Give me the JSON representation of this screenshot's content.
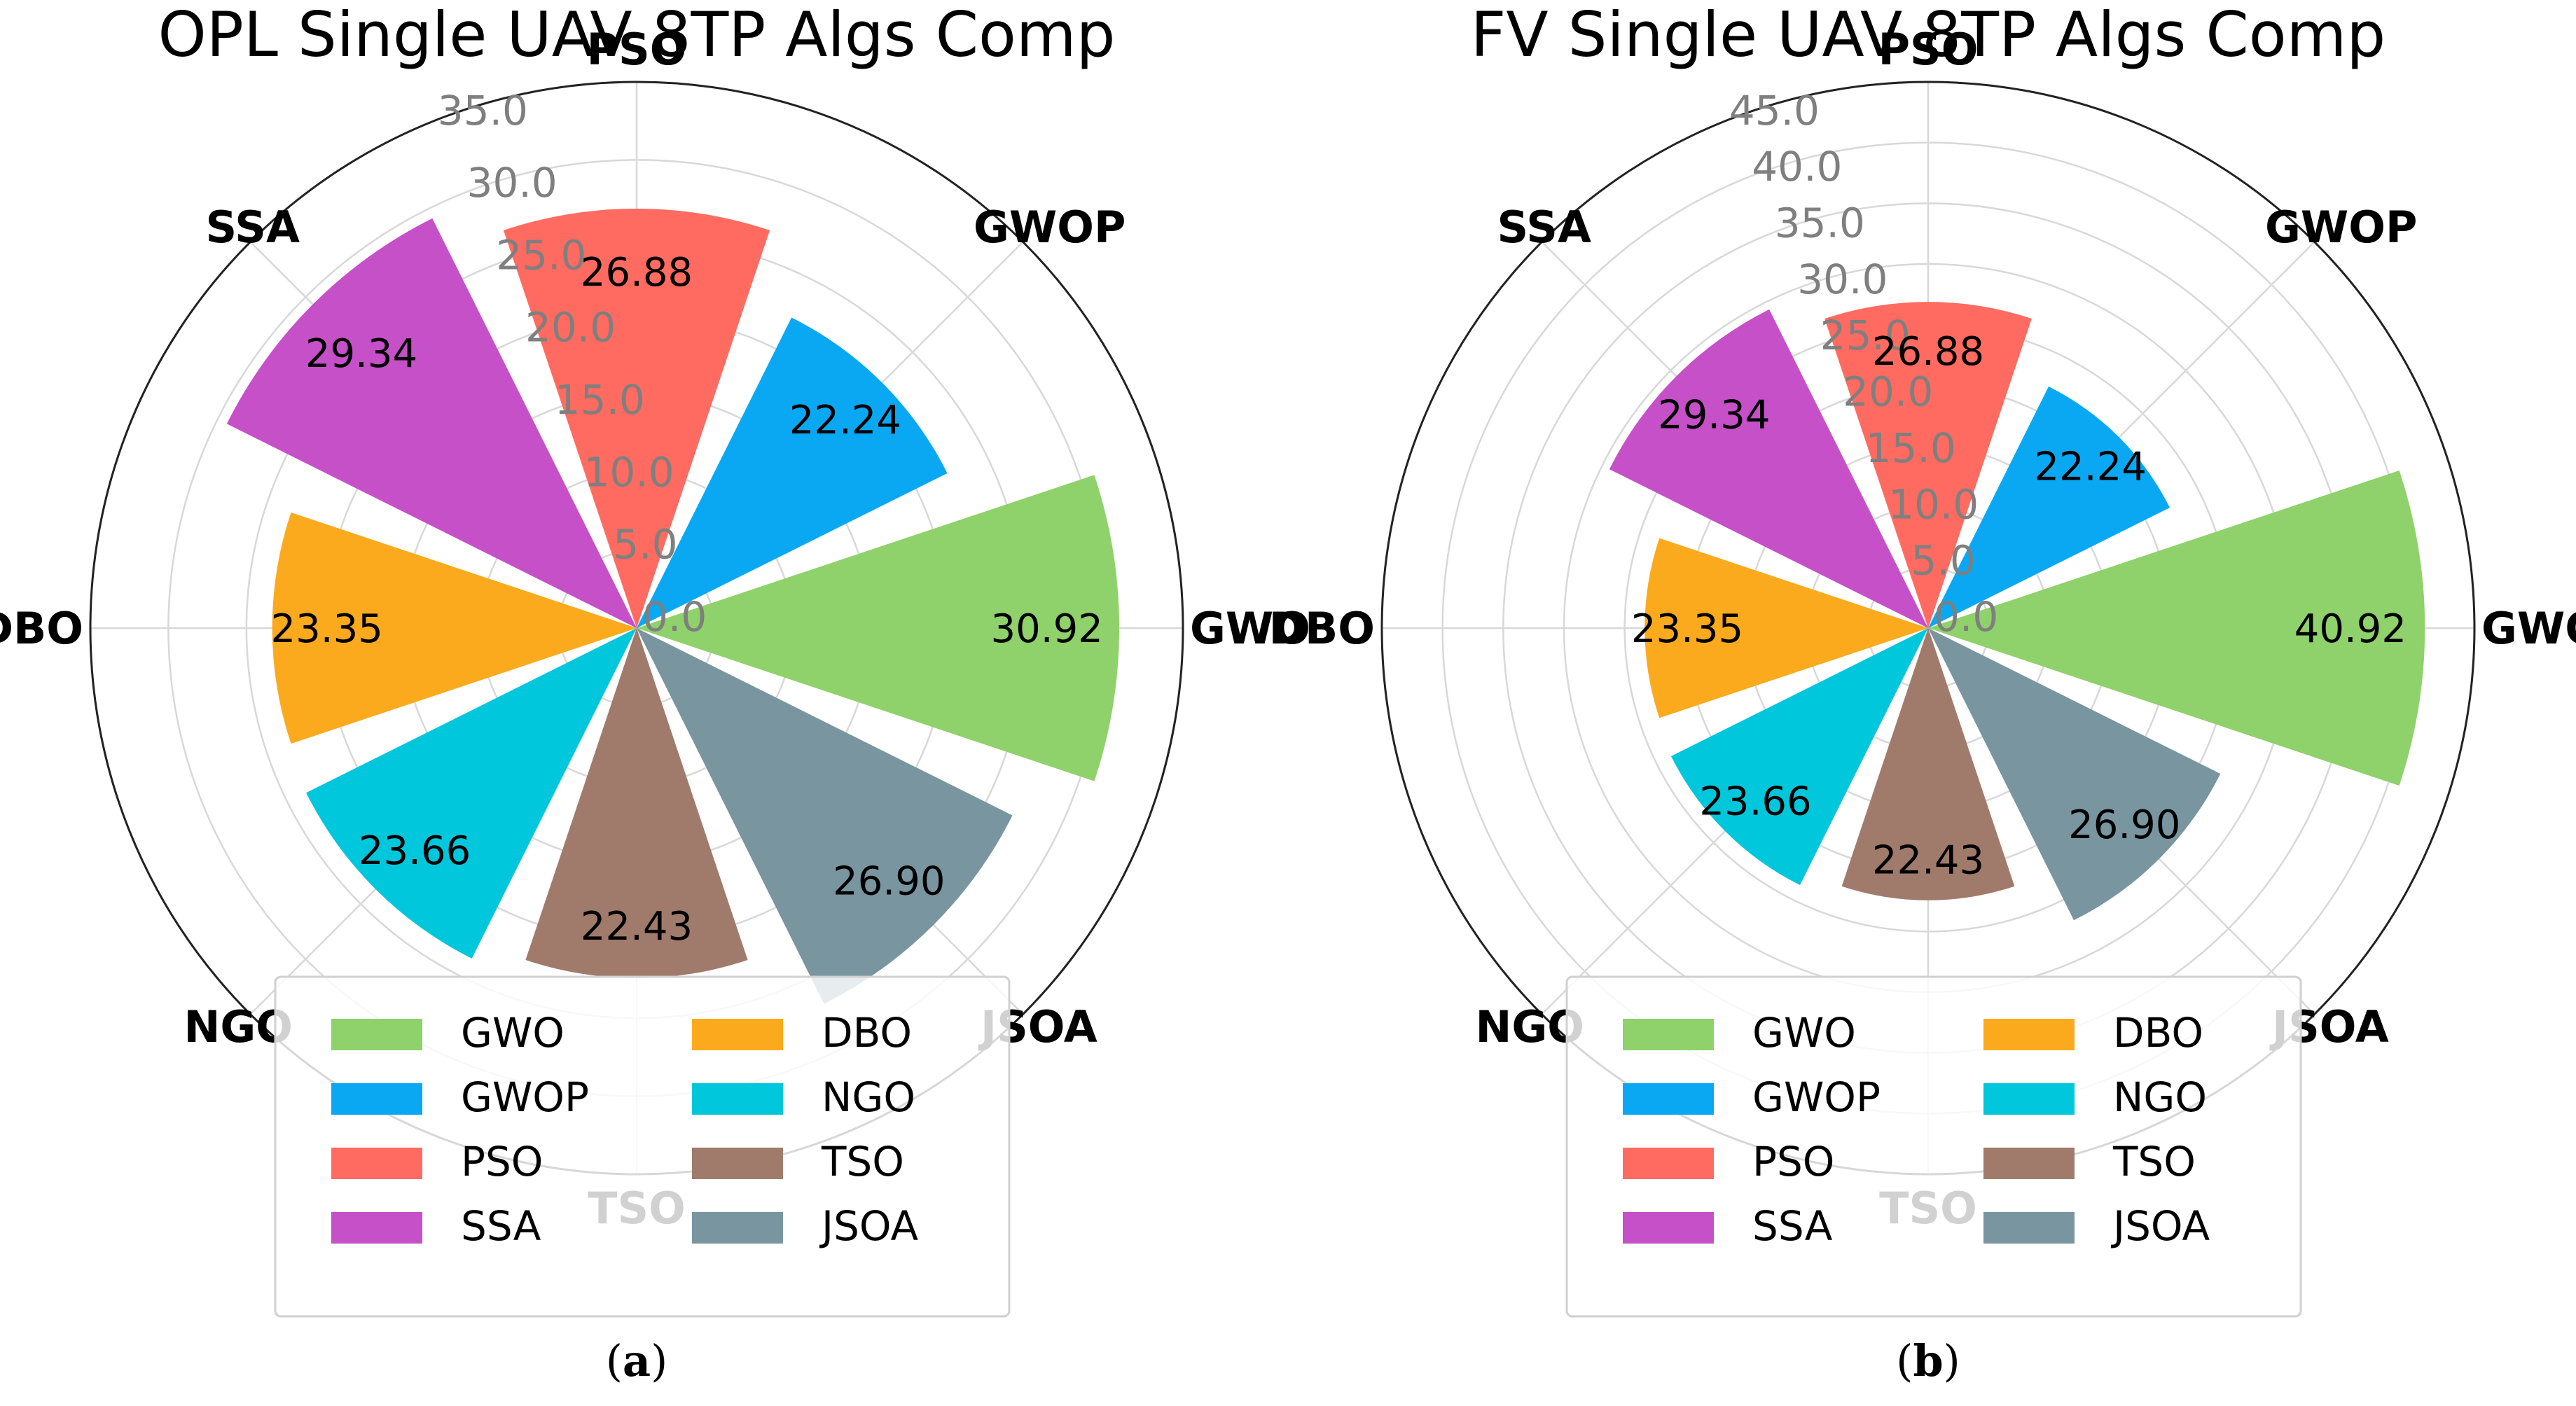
{
  "chart_data": [
    {
      "type": "polar-bar",
      "title": "OPL Single UAV 8TP Algs Comp",
      "caption": {
        "open": "(",
        "letter": "a",
        "close": ")"
      },
      "categories": [
        "GWO",
        "GWOP",
        "PSO",
        "SSA",
        "DBO",
        "NGO",
        "TSO",
        "JSOA"
      ],
      "values": [
        30.92,
        22.24,
        26.88,
        29.34,
        23.35,
        23.66,
        22.43,
        26.9
      ],
      "value_labels": [
        "30.92",
        "22.24",
        "26.88",
        "29.34",
        "23.35",
        "23.66",
        "22.43",
        "26.90"
      ],
      "colors": [
        "#8fd16a",
        "#0aa8f2",
        "#ff6b60",
        "#c550c8",
        "#fbaa1d",
        "#00c7dc",
        "#a07b6c",
        "#7895a0"
      ],
      "rticks": [
        "0.0",
        "5.0",
        "10.0",
        "15.0",
        "20.0",
        "25.0",
        "30.0",
        "35.0"
      ],
      "rlim": [
        0,
        35
      ],
      "grid": true,
      "legend": {
        "placement": "bottom-center",
        "columns": 2,
        "order": [
          "GWO",
          "DBO",
          "GWOP",
          "NGO",
          "PSO",
          "TSO",
          "SSA",
          "JSOA"
        ]
      }
    },
    {
      "type": "polar-bar",
      "title": "FV Single UAV 8TP Algs Comp",
      "caption": {
        "open": "(",
        "letter": "b",
        "close": ")"
      },
      "categories": [
        "GWO",
        "GWOP",
        "PSO",
        "SSA",
        "DBO",
        "NGO",
        "TSO",
        "JSOA"
      ],
      "values": [
        40.92,
        22.24,
        26.88,
        29.34,
        23.35,
        23.66,
        22.43,
        26.9
      ],
      "value_labels": [
        "40.92",
        "22.24",
        "26.88",
        "29.34",
        "23.35",
        "23.66",
        "22.43",
        "26.90"
      ],
      "colors": [
        "#8fd16a",
        "#0aa8f2",
        "#ff6b60",
        "#c550c8",
        "#fbaa1d",
        "#00c7dc",
        "#a07b6c",
        "#7895a0"
      ],
      "rticks": [
        "0.0",
        "5.0",
        "10.0",
        "15.0",
        "20.0",
        "25.0",
        "30.0",
        "35.0",
        "40.0",
        "45.0"
      ],
      "rlim": [
        0,
        45
      ],
      "grid": true,
      "legend": {
        "placement": "bottom-center",
        "columns": 2,
        "order": [
          "GWO",
          "DBO",
          "GWOP",
          "NGO",
          "PSO",
          "TSO",
          "SSA",
          "JSOA"
        ]
      }
    }
  ]
}
